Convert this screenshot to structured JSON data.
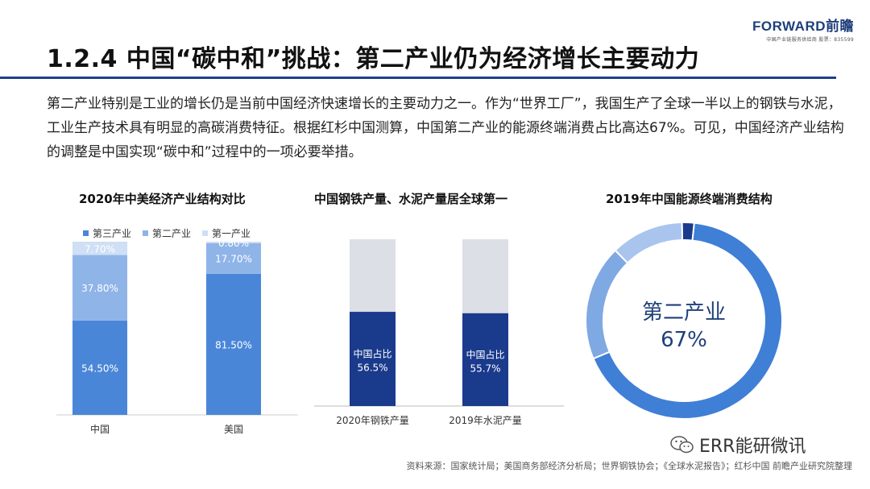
{
  "header": {
    "logo_text": "FORWARD前瞻",
    "logo_subtext": "中国产业链服务供给商 股票：835599"
  },
  "title": "1.2.4 中国“碳中和”挑战：第二产业仍为经济增长主要动力",
  "intro": "第二产业特别是工业的增长仍是当前中国经济快速增长的主要动力之一。作为“世界工厂”，我国生产了全球一半以上的钢铁与水泥，工业生产技术具有明显的高碳消费特征。根据红杉中国测算，中国第二产业的能源终端消费占比高达67%。可见，中国经济产业结构的调整是中国实现“碳中和”过程中的一项必要举措。",
  "colors": {
    "tertiary": "#4a86d8",
    "secondary": "#8fb4e8",
    "primary": "#cfdff5",
    "navy": "#1a3a8c",
    "gray": "#dcdfe6",
    "donut_main": "#3f7fd6",
    "donut_light": "#7fa9e3",
    "donut_lighter": "#a9c5ee"
  },
  "chart_data": [
    {
      "type": "bar",
      "stacked": true,
      "title": "2020年中美经济产业结构对比",
      "categories": [
        "中国",
        "美国"
      ],
      "series": [
        {
          "name": "第三产业",
          "values": [
            54.5,
            81.5
          ],
          "labels": [
            "54.50%",
            "81.50%"
          ]
        },
        {
          "name": "第二产业",
          "values": [
            37.8,
            17.7
          ],
          "labels": [
            "37.80%",
            "17.70%"
          ]
        },
        {
          "name": "第一产业",
          "values": [
            7.7,
            0.8
          ],
          "labels": [
            "7.70%",
            "0.80%"
          ]
        }
      ],
      "ylim": [
        0,
        100
      ],
      "legend_position": "top"
    },
    {
      "type": "bar",
      "stacked": true,
      "title": "中国钢铁产量、水泥产量居全球第一",
      "categories": [
        "2020年钢铁产量",
        "2019年水泥产量"
      ],
      "series": [
        {
          "name": "中国占比",
          "values": [
            56.5,
            55.7
          ],
          "labels": [
            "中国占比\n56.5%",
            "中国占比\n55.7%"
          ]
        },
        {
          "name": "",
          "values": [
            43.5,
            44.3
          ]
        }
      ],
      "ylim": [
        0,
        100
      ]
    },
    {
      "type": "pie",
      "donut": true,
      "title": "2019年中国能源终端消费结构",
      "center_label": "第二产业",
      "center_value": "67%",
      "slices": [
        {
          "name": "第二产业",
          "value": 67
        },
        {
          "name": "",
          "value": 19
        },
        {
          "name": "",
          "value": 12
        },
        {
          "name": "",
          "value": 2
        }
      ]
    }
  ],
  "source": "资料来源：国家统计局；美国商务部经济分析局；世界钢铁协会；《全球水泥报告》；红杉中国 前瞻产业研究院整理",
  "wechat_label": "ERR能研微讯"
}
